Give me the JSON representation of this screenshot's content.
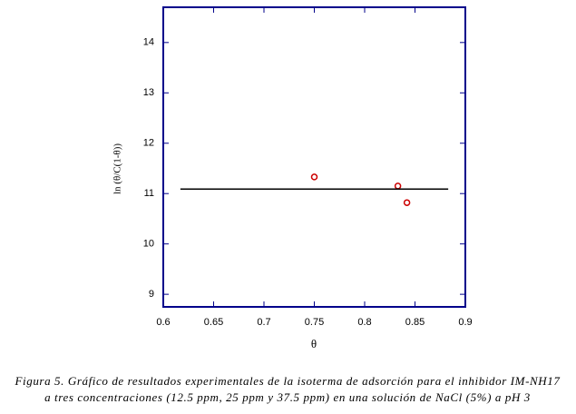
{
  "chart_data": {
    "type": "scatter",
    "xlabel": "θ",
    "ylabel": "ln (θ/C(1-θ))",
    "xlim": [
      0.6,
      0.9
    ],
    "ylim": [
      8.75,
      14.7
    ],
    "xticks": [
      0.6,
      0.65,
      0.7,
      0.75,
      0.8,
      0.85,
      0.9
    ],
    "yticks": [
      9,
      10,
      11,
      12,
      13,
      14
    ],
    "frame_color": "#00008b",
    "series": [
      {
        "x": [
          0.75,
          0.833,
          0.842
        ],
        "values": [
          11.33,
          11.15,
          10.82
        ],
        "color": "#cc0000",
        "marker": "circle"
      },
      {
        "x": [
          0.617,
          0.883
        ],
        "values": [
          11.09,
          11.09
        ],
        "color": "#000000",
        "marker": "line"
      }
    ],
    "caption": [
      "Figura 5. Gráfico de resultados experimentales de la isoterma de adsorción para el inhibidor IM-NH17",
      "a tres concentraciones (12.5 ppm, 25 ppm y 37.5 ppm) en una solución de NaCl (5%) a pH 3"
    ]
  }
}
